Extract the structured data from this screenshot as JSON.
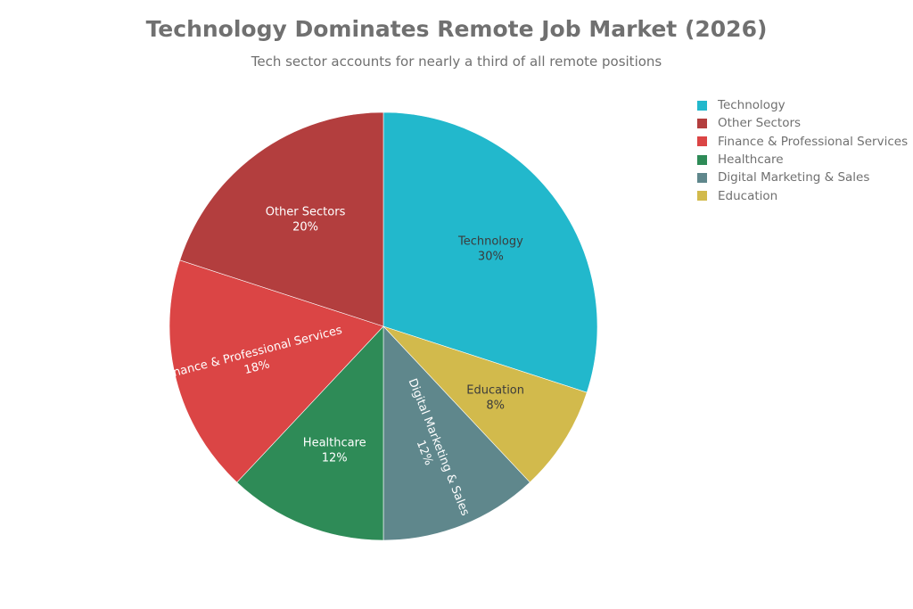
{
  "chart_data": {
    "type": "pie",
    "title": "Technology Dominates Remote Job Market (2026)",
    "subtitle": "Tech sector accounts for nearly a third of all remote positions",
    "legend_position": "right",
    "slices": [
      {
        "label": "Technology",
        "value": 30,
        "value_label": "30%",
        "color": "#22b8cc",
        "text_color": "#3b3b3b",
        "label_orientation": "horizontal"
      },
      {
        "label": "Education",
        "value": 8,
        "value_label": "8%",
        "color": "#d2ba4c",
        "text_color": "#3b3b3b",
        "label_orientation": "horizontal"
      },
      {
        "label": "Digital Marketing & Sales",
        "value": 12,
        "value_label": "12%",
        "color": "#5f878c",
        "text_color": "#ffffff",
        "label_orientation": "radial"
      },
      {
        "label": "Healthcare",
        "value": 12,
        "value_label": "12%",
        "color": "#2e8b57",
        "text_color": "#ffffff",
        "label_orientation": "horizontal"
      },
      {
        "label": "Finance & Professional Services",
        "value": 18,
        "value_label": "18%",
        "color": "#db4545",
        "text_color": "#ffffff",
        "label_orientation": "radial"
      },
      {
        "label": "Other Sectors",
        "value": 20,
        "value_label": "20%",
        "color": "#b33e3e",
        "text_color": "#ffffff",
        "label_orientation": "horizontal"
      }
    ],
    "legend": [
      {
        "label": "Technology",
        "color": "#22b8cc"
      },
      {
        "label": "Other Sectors",
        "color": "#b33e3e"
      },
      {
        "label": "Finance & Professional Services",
        "color": "#db4545"
      },
      {
        "label": "Healthcare",
        "color": "#2e8b57"
      },
      {
        "label": "Digital Marketing & Sales",
        "color": "#5f878c"
      },
      {
        "label": "Education",
        "color": "#d2ba4c"
      }
    ]
  }
}
